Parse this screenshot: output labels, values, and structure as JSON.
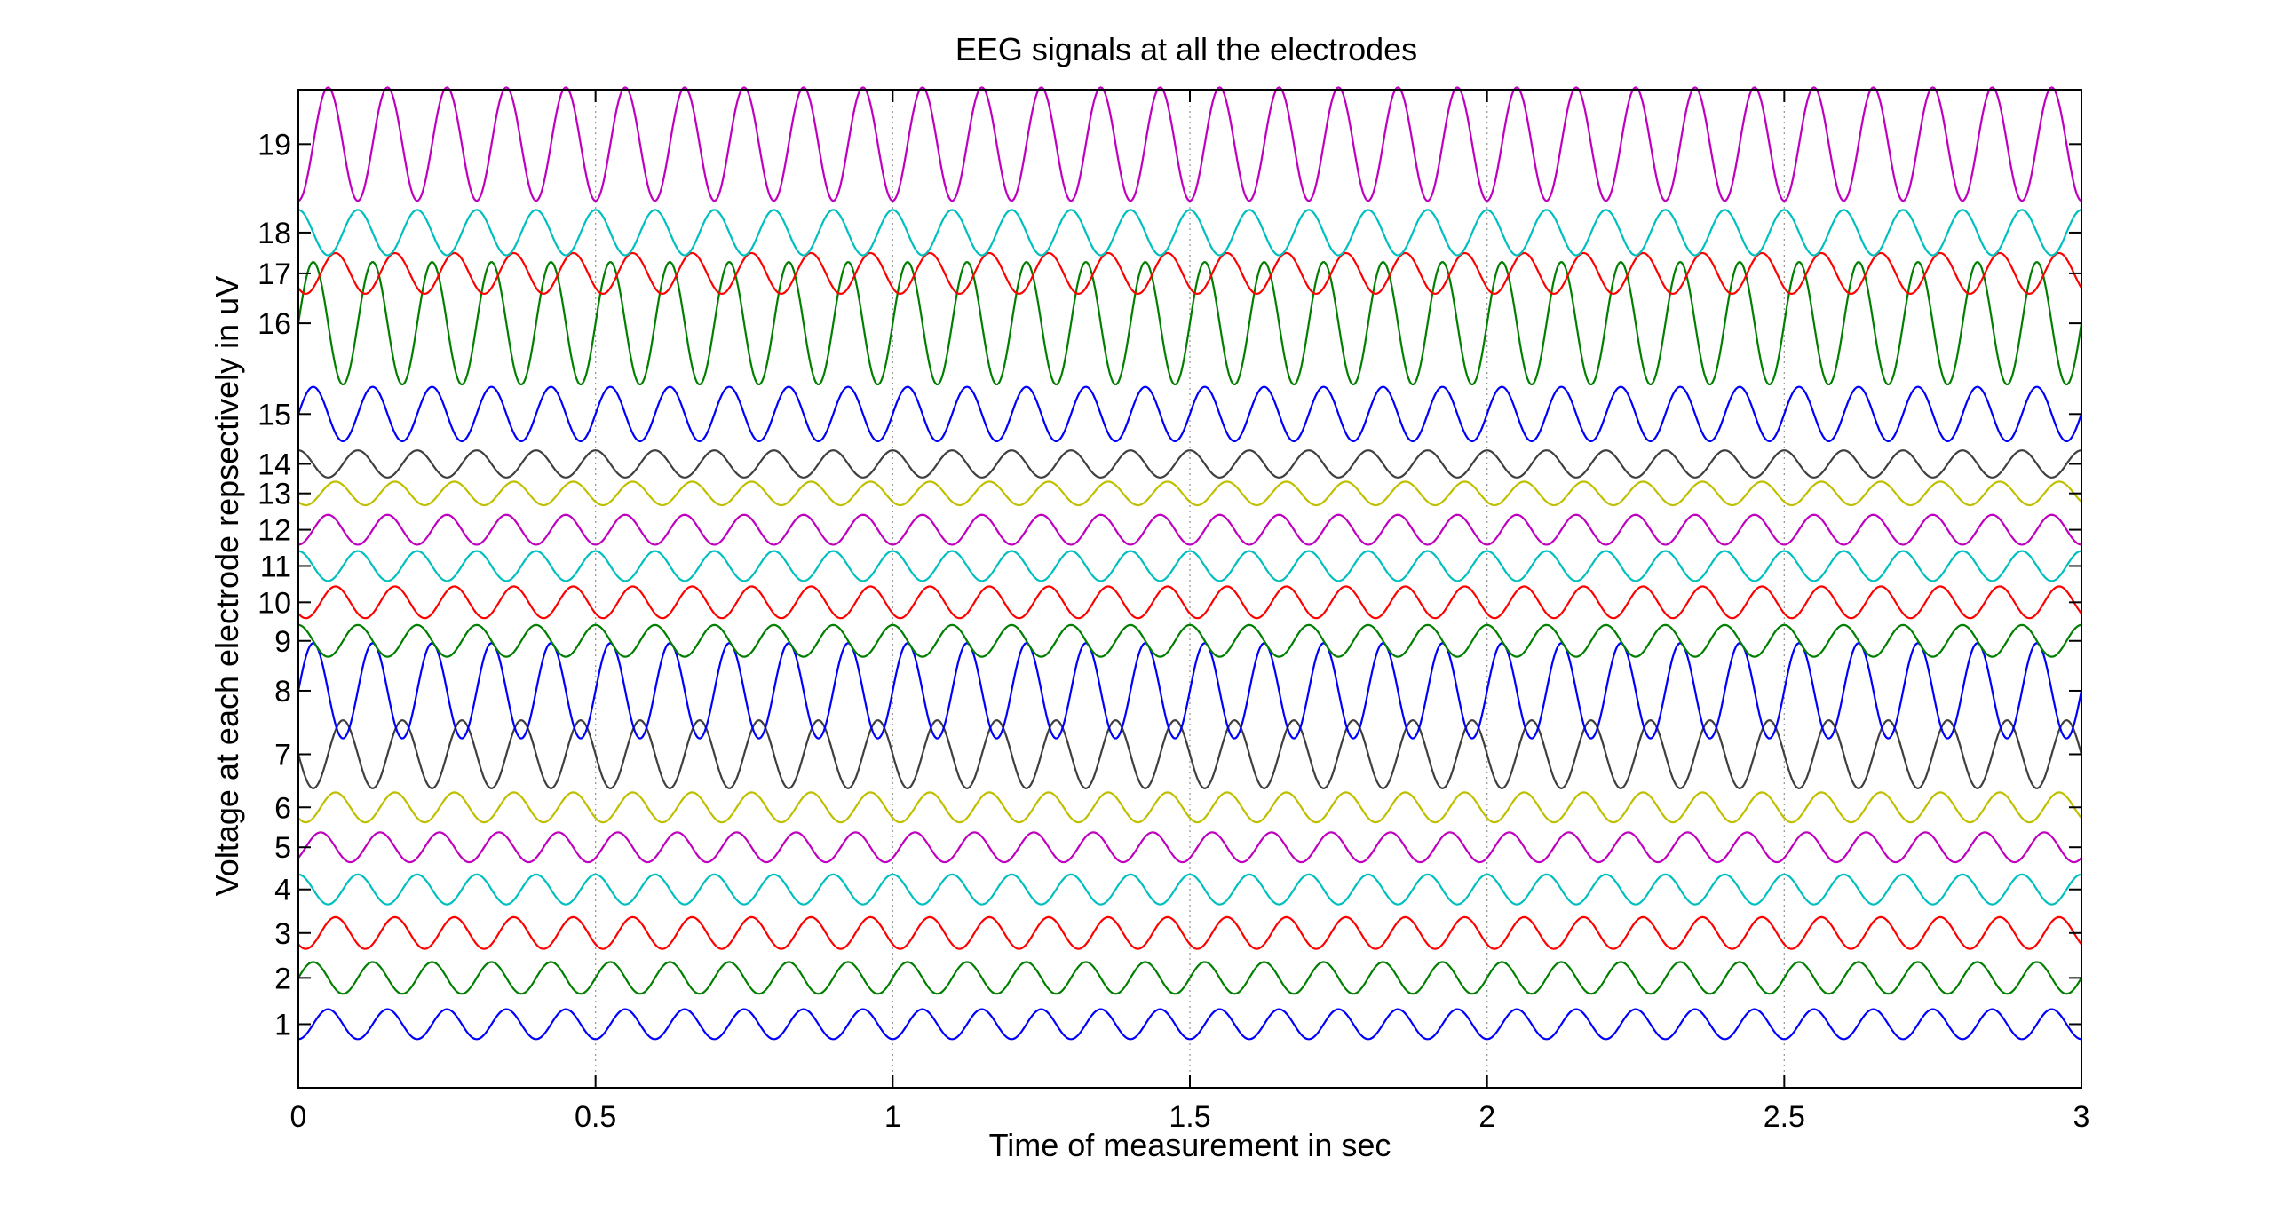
{
  "chart_data": {
    "type": "line",
    "title": "EEG signals at all the electrodes",
    "xlabel": "Time of measurement in sec",
    "ylabel": "Voltage at each electrode repsectively in uV",
    "xlim": [
      0,
      3
    ],
    "x_ticks": [
      "0",
      "0.5",
      "1",
      "1.5",
      "2",
      "2.5",
      "3"
    ],
    "x_tick_values": [
      0,
      0.5,
      1,
      1.5,
      2,
      2.5,
      3
    ],
    "y_ticks": [
      "1",
      "2",
      "3",
      "4",
      "5",
      "6",
      "7",
      "8",
      "9",
      "10",
      "11",
      "12",
      "13",
      "14",
      "15",
      "16",
      "17",
      "18",
      "19"
    ],
    "grid": {
      "x": true,
      "y": false
    },
    "legend": "none",
    "frequency_hz": 10,
    "sample_step_sec": 0.002,
    "series": [
      {
        "electrode": 1,
        "offset": 1,
        "amplitude": 0.33,
        "phase": 0.75,
        "color": "#0000ff"
      },
      {
        "electrode": 2,
        "offset": 2.02,
        "amplitude": 0.35,
        "phase": 0.0,
        "color": "#007f00"
      },
      {
        "electrode": 3,
        "offset": 3.01,
        "amplitude": 0.35,
        "phase": 0.625,
        "color": "#ff0000"
      },
      {
        "electrode": 4,
        "offset": 3.97,
        "amplitude": 0.33,
        "phase": 0.25,
        "color": "#00bfbf"
      },
      {
        "electrode": 5,
        "offset": 4.9,
        "amplitude": 0.33,
        "phase": 0.875,
        "color": "#bf00bf"
      },
      {
        "electrode": 6,
        "offset": 5.78,
        "amplitude": 0.33,
        "phase": 0.625,
        "color": "#bfbf00"
      },
      {
        "electrode": 7,
        "offset": 6.95,
        "amplitude": 0.75,
        "phase": 0.5,
        "color": "#3f3f3f"
      },
      {
        "electrode": 8,
        "offset": 8.35,
        "amplitude": 1.05,
        "phase": 0.0,
        "color": "#0000ff"
      },
      {
        "electrode": 9,
        "offset": 9.45,
        "amplitude": 0.35,
        "phase": 0.25,
        "color": "#007f00"
      },
      {
        "electrode": 10,
        "offset": 10.3,
        "amplitude": 0.35,
        "phase": 0.625,
        "color": "#ff0000"
      },
      {
        "electrode": 11,
        "offset": 11.1,
        "amplitude": 0.33,
        "phase": 0.25,
        "color": "#00bfbf"
      },
      {
        "electrode": 12,
        "offset": 11.9,
        "amplitude": 0.33,
        "phase": 0.75,
        "color": "#bf00bf"
      },
      {
        "electrode": 13,
        "offset": 12.7,
        "amplitude": 0.26,
        "phase": 0.625,
        "color": "#bfbf00"
      },
      {
        "electrode": 14,
        "offset": 13.35,
        "amplitude": 0.3,
        "phase": 0.25,
        "color": "#3f3f3f"
      },
      {
        "electrode": 15,
        "offset": 14.45,
        "amplitude": 0.6,
        "phase": 0.0,
        "color": "#0000ff"
      },
      {
        "electrode": 16,
        "offset": 16.45,
        "amplitude": 1.35,
        "phase": 0.0,
        "color": "#007f00"
      },
      {
        "electrode": 17,
        "offset": 17.55,
        "amplitude": 0.45,
        "phase": 0.625,
        "color": "#ff0000"
      },
      {
        "electrode": 18,
        "offset": 18.45,
        "amplitude": 0.5,
        "phase": 0.25,
        "color": "#00bfbf"
      },
      {
        "electrode": 19,
        "offset": 20.4,
        "amplitude": 1.25,
        "phase": 0.75,
        "color": "#bf00bf"
      }
    ]
  }
}
